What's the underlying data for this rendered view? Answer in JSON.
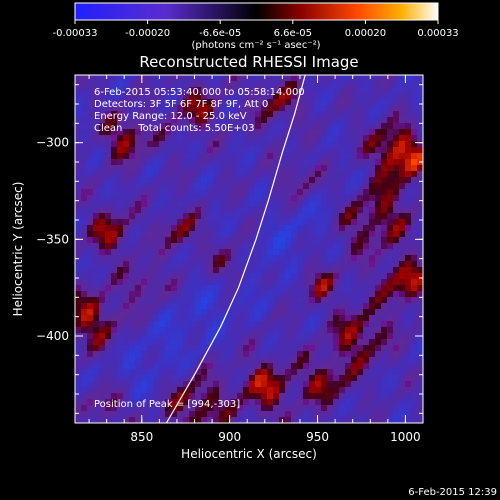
{
  "chart_data": {
    "type": "heatmap",
    "title": "Reconstructed RHESSI Image",
    "xlabel": "Heliocentric X (arcsec)",
    "ylabel": "Heliocentric Y (arcsec)",
    "xlim": [
      812,
      1010
    ],
    "ylim": [
      -445,
      -265
    ],
    "xticks": [
      850,
      900,
      950,
      1000
    ],
    "yticks": [
      -300,
      -350,
      -400
    ],
    "colorbar": {
      "ticks": [
        "-0.00033",
        "-0.00020",
        "-6.6e-05",
        "6.6e-05",
        "0.00020",
        "0.00033"
      ],
      "unit": "(photons cm⁻² s⁻¹ asec⁻²)",
      "range": [
        -0.00033,
        0.00033
      ]
    },
    "annotations": [
      "6-Feb-2015 05:53:40.000 to 05:58:14.000",
      "Detectors: 3F 5F 6F 7F 8F 9F, Att 0",
      "Energy Range: 12.0 - 25.0 keV",
      "Clean     Total counts: 5.50E+03"
    ],
    "peak_label": "Position of Peak = [994,-303]",
    "peak": [
      994,
      -303
    ],
    "limb_curve": [
      [
        864,
        -445
      ],
      [
        880,
        -420
      ],
      [
        895,
        -395
      ],
      [
        905,
        -375
      ],
      [
        915,
        -350
      ],
      [
        922,
        -330
      ],
      [
        930,
        -305
      ],
      [
        937,
        -285
      ],
      [
        943,
        -265
      ]
    ]
  },
  "timestamp": "6-Feb-2015 12:39"
}
